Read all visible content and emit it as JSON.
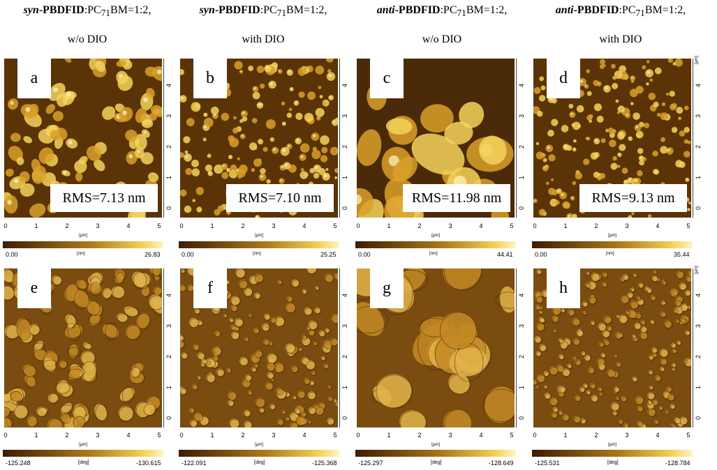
{
  "headers": [
    {
      "prefix": "syn",
      "bold": "-PBDFID",
      "rest": ":PC",
      "sub": "71",
      "tail": "BM=1:2,",
      "line2": "w/o DIO"
    },
    {
      "prefix": "syn",
      "bold": "-PBDFID",
      "rest": ":PC",
      "sub": "71",
      "tail": "BM=1:2,",
      "line2": "with DIO"
    },
    {
      "prefix": "anti",
      "bold": "-PBDFID",
      "rest": ":PC",
      "sub": "71",
      "tail": "BM=1:2,",
      "line2": "w/o DIO"
    },
    {
      "prefix": "anti",
      "bold": "-PBDFID",
      "rest": ":PC",
      "sub": "71",
      "tail": "BM=1:2,",
      "line2": "with DIO"
    }
  ],
  "height_panels": [
    {
      "letter": "a",
      "rms": "RMS=7.13 nm",
      "cb_min": "0.00",
      "cb_unit": "[nm]",
      "cb_max": "26.83"
    },
    {
      "letter": "b",
      "rms": "RMS=7.10 nm",
      "cb_min": "0.00",
      "cb_unit": "[nm]",
      "cb_max": "25.25"
    },
    {
      "letter": "c",
      "rms": "RMS=11.98 nm",
      "cb_min": "0.00",
      "cb_unit": "[nm]",
      "cb_max": "44.41"
    },
    {
      "letter": "d",
      "rms": "RMS=9.13 nm",
      "cb_min": "0.00",
      "cb_unit": "[nm]",
      "cb_max": "35.44"
    }
  ],
  "phase_panels": [
    {
      "letter": "e",
      "cb_min": "-125.248",
      "cb_unit": "[deg]",
      "cb_max": "-130.615"
    },
    {
      "letter": "f",
      "cb_min": "-122.091",
      "cb_unit": "[deg]",
      "cb_max": "-125.368"
    },
    {
      "letter": "g",
      "cb_min": "-125.297",
      "cb_unit": "[deg]",
      "cb_max": "-128.649"
    },
    {
      "letter": "h",
      "cb_min": "-125.531",
      "cb_unit": "[deg]",
      "cb_max": "-128.784"
    }
  ],
  "axis": {
    "x_ticks": [
      "0",
      "1",
      "2",
      "3",
      "4",
      "5"
    ],
    "y_ticks": [
      "0",
      "1",
      "2",
      "3",
      "4"
    ],
    "unit": "[µm]"
  },
  "colors": {
    "dark": "#3a1d05",
    "mid": "#b07a1a",
    "bright": "#f5d25a",
    "highlight": "#fff6c0"
  }
}
